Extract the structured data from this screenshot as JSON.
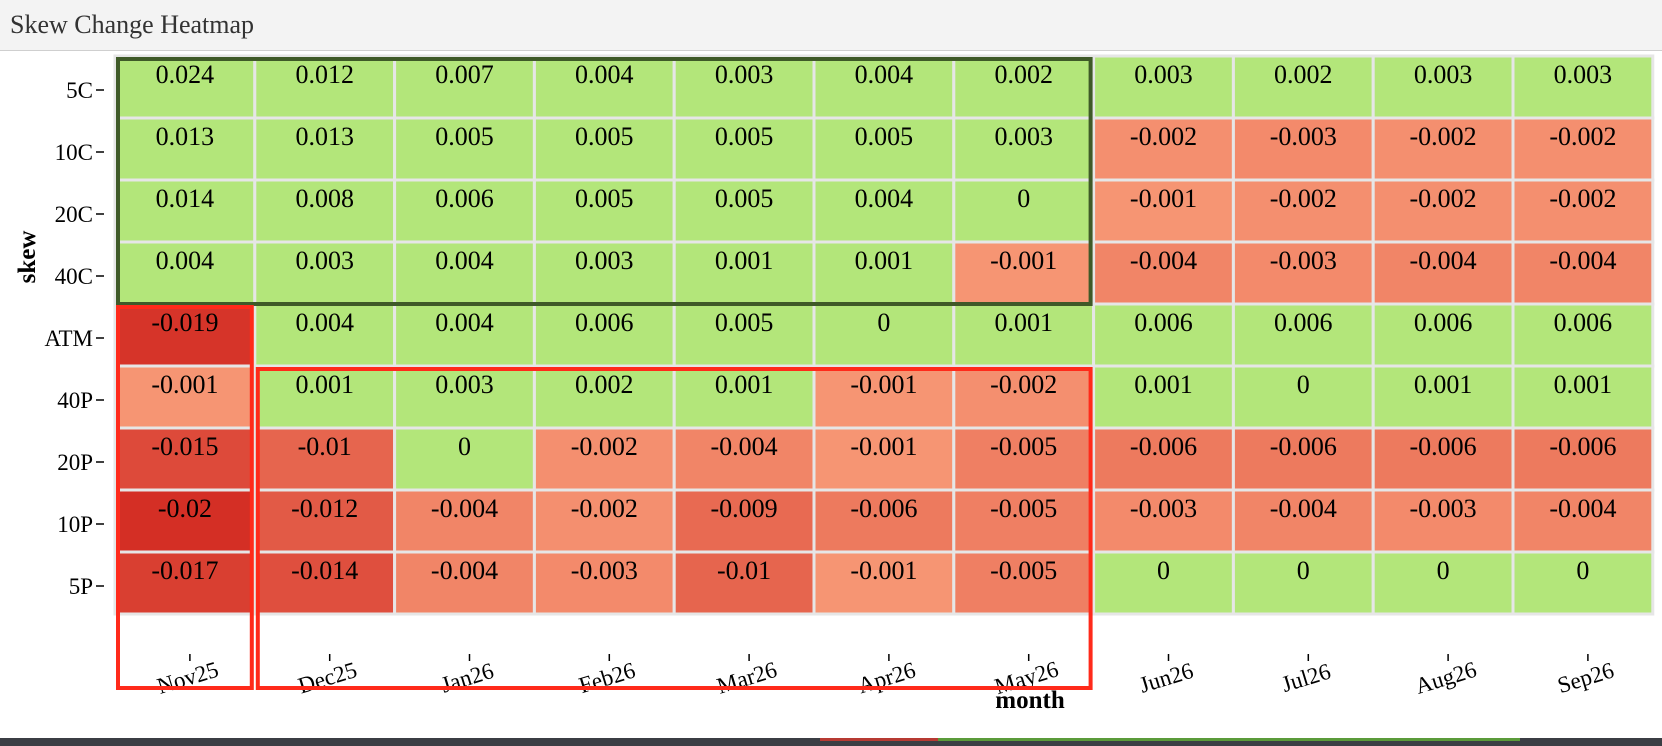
{
  "window": {
    "title": "Skew Change Heatmap"
  },
  "chart_data": {
    "type": "heatmap",
    "title": "Skew Change Heatmap",
    "xlabel": "month",
    "ylabel": "skew",
    "x": [
      "Nov25",
      "Dec25",
      "Jan26",
      "Feb26",
      "Mar26",
      "Apr26",
      "May26",
      "Jun26",
      "Jul26",
      "Aug26",
      "Sep26"
    ],
    "y": [
      "5C",
      "10C",
      "20C",
      "40C",
      "ATM",
      "40P",
      "20P",
      "10P",
      "5P"
    ],
    "values": [
      [
        "0.024",
        "0.012",
        "0.007",
        "0.004",
        "0.003",
        "0.004",
        "0.002",
        "0.003",
        "0.002",
        "0.003",
        "0.003"
      ],
      [
        "0.013",
        "0.013",
        "0.005",
        "0.005",
        "0.005",
        "0.005",
        "0.003",
        "-0.002",
        "-0.003",
        "-0.002",
        "-0.002"
      ],
      [
        "0.014",
        "0.008",
        "0.006",
        "0.005",
        "0.005",
        "0.004",
        "0",
        "-0.001",
        "-0.002",
        "-0.002",
        "-0.002"
      ],
      [
        "0.004",
        "0.003",
        "0.004",
        "0.003",
        "0.001",
        "0.001",
        "-0.001",
        "-0.004",
        "-0.003",
        "-0.004",
        "-0.004"
      ],
      [
        "-0.019",
        "0.004",
        "0.004",
        "0.006",
        "0.005",
        "0",
        "0.001",
        "0.006",
        "0.006",
        "0.006",
        "0.006"
      ],
      [
        "-0.001",
        "0.001",
        "0.003",
        "0.002",
        "0.001",
        "-0.001",
        "-0.002",
        "0.001",
        "0",
        "0.001",
        "0.001"
      ],
      [
        "-0.015",
        "-0.01",
        "0",
        "-0.002",
        "-0.004",
        "-0.001",
        "-0.005",
        "-0.006",
        "-0.006",
        "-0.006",
        "-0.006"
      ],
      [
        "-0.02",
        "-0.012",
        "-0.004",
        "-0.002",
        "-0.009",
        "-0.006",
        "-0.005",
        "-0.003",
        "-0.004",
        "-0.003",
        "-0.004"
      ],
      [
        "-0.017",
        "-0.014",
        "-0.004",
        "-0.003",
        "-0.01",
        "-0.001",
        "-0.005",
        "0",
        "0",
        "0",
        "0"
      ]
    ],
    "colors": {
      "positive": "#b3e67a",
      "negative_light": "#f89a77",
      "negative_dark": "#d42f25",
      "cell_border": "#e6e6e6"
    },
    "highlights": [
      {
        "name": "calls-near-term",
        "color": "#3f5a28",
        "rows": [
          "5C",
          "40C"
        ],
        "cols": [
          "Nov25",
          "May26"
        ]
      },
      {
        "name": "atm-nov",
        "color": "#ff2a1a",
        "rows": [
          "ATM",
          "5P"
        ],
        "cols": [
          "Nov25",
          "Nov25"
        ]
      },
      {
        "name": "puts-near-term",
        "color": "#ff2a1a",
        "rows": [
          "40P",
          "5P"
        ],
        "cols": [
          "Dec25",
          "May26"
        ]
      }
    ]
  }
}
